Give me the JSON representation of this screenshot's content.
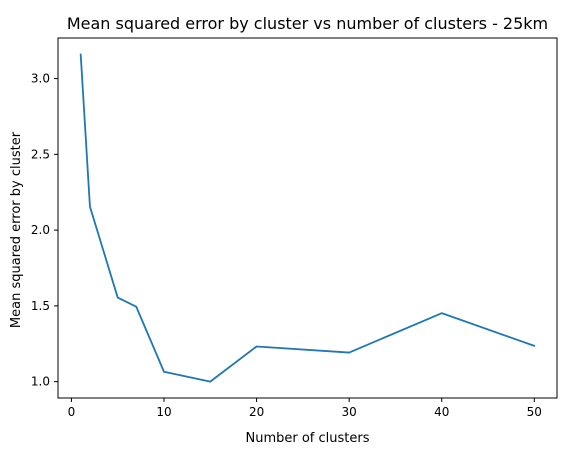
{
  "chart_data": {
    "type": "line",
    "title": "Mean squared error by cluster vs number of clusters - 25km",
    "xlabel": "Number of clusters",
    "ylabel": "Mean squared error by cluster",
    "xlim": [
      -1.45,
      52.45
    ],
    "ylim": [
      0.892,
      3.268
    ],
    "xticks": [
      0,
      10,
      20,
      30,
      40,
      50
    ],
    "xtick_labels": [
      "0",
      "10",
      "20",
      "30",
      "40",
      "50"
    ],
    "yticks": [
      1.0,
      1.5,
      2.0,
      2.5,
      3.0
    ],
    "ytick_labels": [
      "1.0",
      "1.5",
      "2.0",
      "2.5",
      "3.0"
    ],
    "grid": false,
    "legend": "none",
    "series": [
      {
        "color": "#1f77b4",
        "x": [
          1,
          2,
          5,
          7,
          10,
          15,
          20,
          30,
          40,
          50
        ],
        "y": [
          3.16,
          2.155,
          1.555,
          1.495,
          1.065,
          1.0,
          1.232,
          1.192,
          1.452,
          1.236
        ]
      }
    ]
  }
}
